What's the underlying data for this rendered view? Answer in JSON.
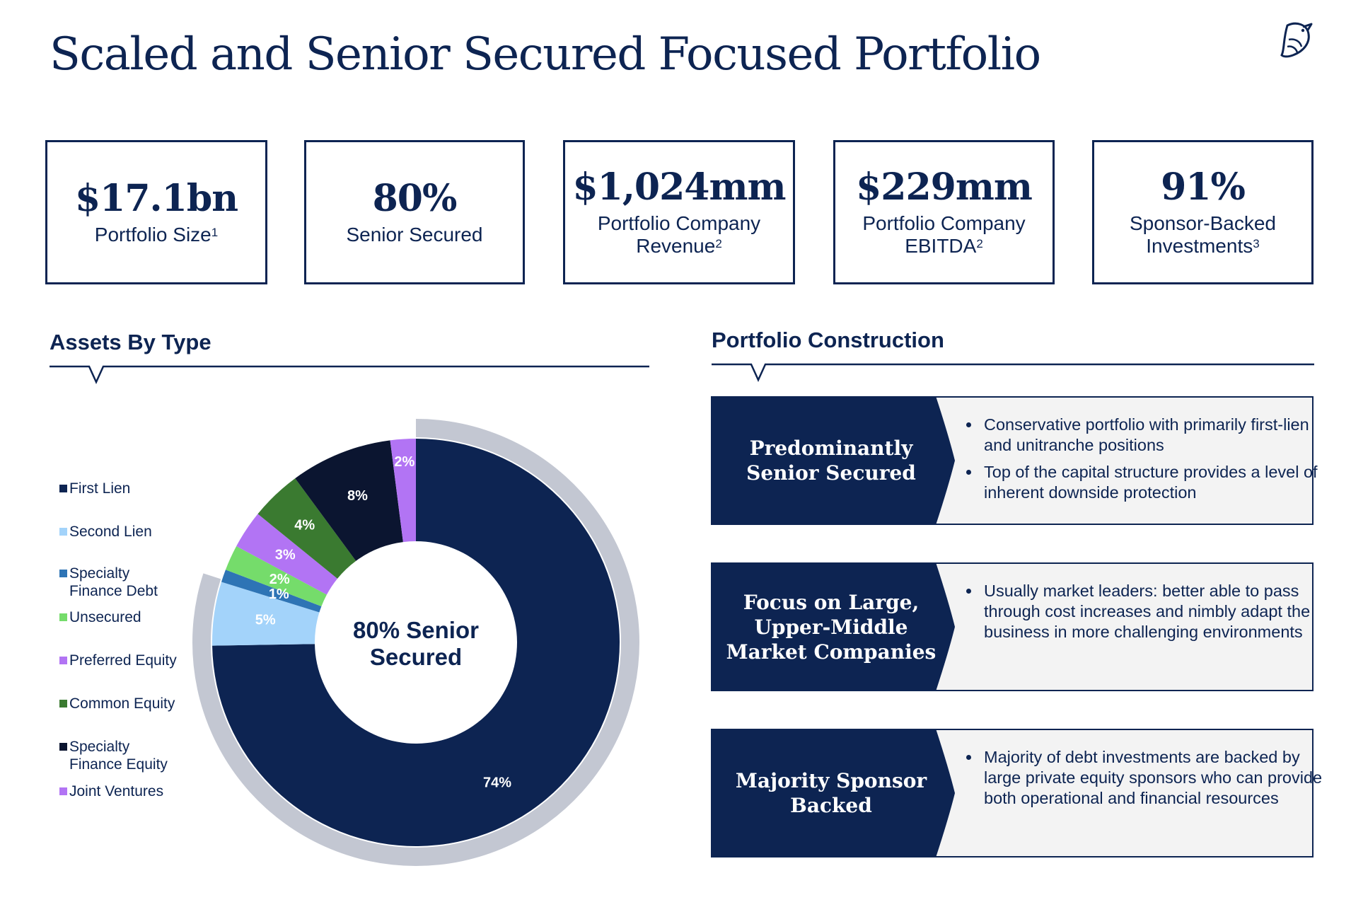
{
  "title": "Scaled and Senior Secured Focused Portfolio",
  "logo_icon": "bird-logo-icon",
  "stats": [
    {
      "value": "$17.1bn",
      "label": "Portfolio Size",
      "sup": "1"
    },
    {
      "value": "80%",
      "label": "Senior Secured",
      "sup": ""
    },
    {
      "value": "$1,024mm",
      "label_line1": "Portfolio Company",
      "label_line2": "Revenue",
      "sup": "2"
    },
    {
      "value": "$229mm",
      "label_line1": "Portfolio Company",
      "label_line2": "EBITDA",
      "sup": "2"
    },
    {
      "value": "91%",
      "label_line1": "Sponsor-Backed",
      "label_line2": "Investments",
      "sup": "3"
    }
  ],
  "assets_section": {
    "heading": "Assets By Type"
  },
  "construction_section": {
    "heading": "Portfolio Construction"
  },
  "chart_data": {
    "type": "pie",
    "variant": "donut",
    "categories": [
      "First Lien",
      "Second Lien",
      "Specialty Finance Debt",
      "Unsecured",
      "Preferred Equity",
      "Common Equity",
      "Specialty Finance Equity",
      "Joint Ventures"
    ],
    "legend": [
      {
        "line1": "First Lien",
        "line2": ""
      },
      {
        "line1": "Second Lien",
        "line2": ""
      },
      {
        "line1": "Specialty",
        "line2": "Finance Debt"
      },
      {
        "line1": "Unsecured",
        "line2": ""
      },
      {
        "line1": "Preferred Equity",
        "line2": ""
      },
      {
        "line1": "Common Equity",
        "line2": ""
      },
      {
        "line1": "Specialty",
        "line2": "Finance Equity"
      },
      {
        "line1": "Joint Ventures",
        "line2": ""
      }
    ],
    "values": [
      74,
      5,
      1,
      2,
      3,
      4,
      8,
      2
    ],
    "data_labels": [
      "74%",
      "5%",
      "1%",
      "2%",
      "3%",
      "4%",
      "8%",
      "2%"
    ],
    "colors": [
      "#0d2452",
      "#a3d3fa",
      "#2e74b5",
      "#75dc6b",
      "#b274f4",
      "#3a7a30",
      "#0b1530",
      "#b274f4"
    ],
    "label_colors": [
      "#ffffff",
      "#ffffff",
      "#ffffff",
      "#ffffff",
      "#ffffff",
      "#ffffff",
      "#ffffff",
      "#ffffff"
    ],
    "center_label_line1": "80% Senior",
    "center_label_line2": "Secured",
    "highlight_ring": {
      "covers_percent": 80,
      "color": "#c3c7d2"
    },
    "legend_position": "left"
  },
  "cards": [
    {
      "heading_line1": "Predominantly",
      "heading_line2": "Senior Secured",
      "heading_line3": "",
      "bullets": [
        "Conservative portfolio with primarily first-lien and unitranche positions",
        "Top of the capital structure provides a level of inherent downside protection"
      ]
    },
    {
      "heading_line1": "Focus on Large,",
      "heading_line2": "Upper-Middle",
      "heading_line3": "Market Companies",
      "bullets": [
        "Usually market leaders: better able to pass through cost increases and nimbly adapt the business in more challenging environments"
      ]
    },
    {
      "heading_line1": "Majority Sponsor",
      "heading_line2": "Backed",
      "heading_line3": "",
      "bullets": [
        "Majority of debt investments are backed by large private equity sponsors who can provide both operational and financial resources"
      ]
    }
  ],
  "colors": {
    "navy": "#0d2452",
    "card_bg": "#f3f3f3",
    "ring": "#c3c7d2"
  }
}
